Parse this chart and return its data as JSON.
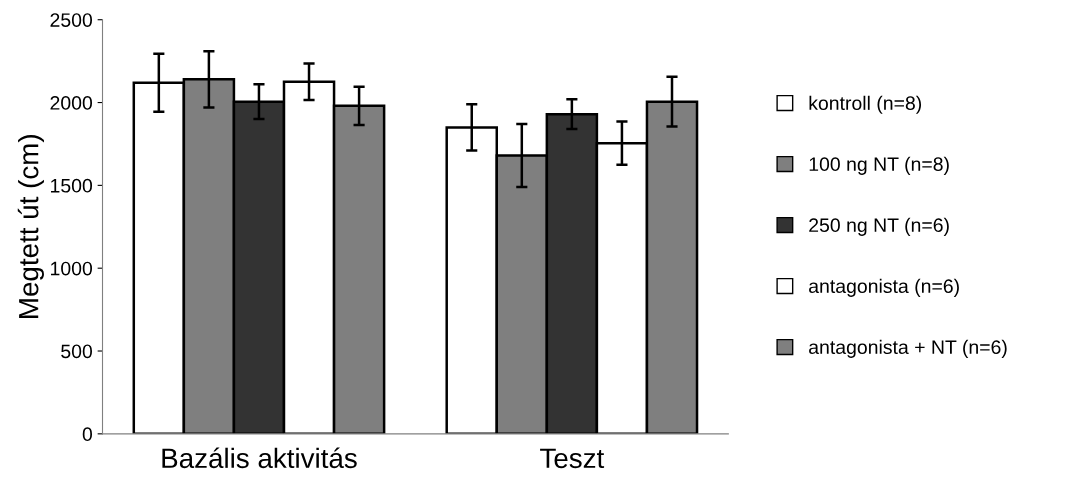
{
  "chart_data": {
    "type": "bar",
    "ylabel": "Megtett út (cm)",
    "categories": [
      "Bazális aktivitás",
      "Teszt"
    ],
    "series": [
      {
        "name": "kontroll (n=8)",
        "color": "#ffffff",
        "values": [
          2120,
          1850
        ],
        "errors": [
          175,
          140
        ]
      },
      {
        "name": "100 ng NT (n=8)",
        "color": "#7f7f7f",
        "values": [
          2140,
          1680
        ],
        "errors": [
          170,
          190
        ]
      },
      {
        "name": "250 ng NT (n=6)",
        "color": "#333333",
        "values": [
          2005,
          1930
        ],
        "errors": [
          105,
          90
        ]
      },
      {
        "name": "antagonista (n=6)",
        "color": "#ffffff",
        "values": [
          2125,
          1755
        ],
        "errors": [
          110,
          130
        ]
      },
      {
        "name": "antagonista + NT (n=6)",
        "color": "#7f7f7f",
        "values": [
          1980,
          2005
        ],
        "errors": [
          115,
          150
        ]
      }
    ],
    "ylim": [
      0,
      2500
    ],
    "yticks": [
      0,
      500,
      1000,
      1500,
      2000,
      2500
    ],
    "grid": false,
    "legend": "right"
  }
}
